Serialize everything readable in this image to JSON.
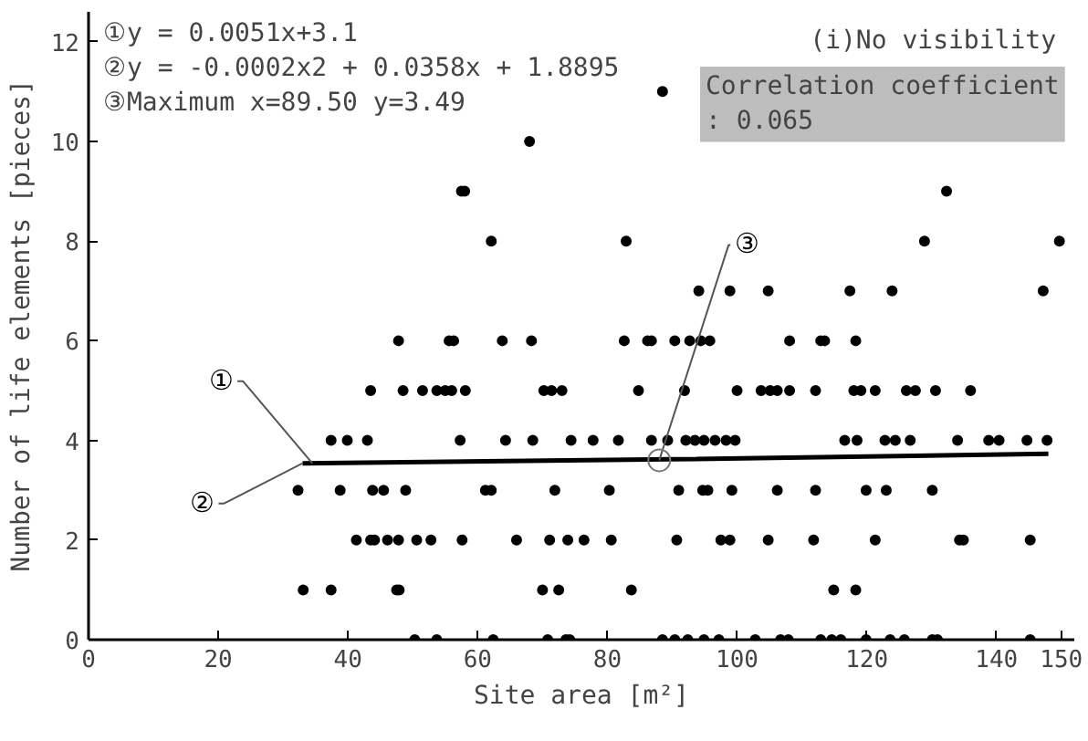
{
  "chart_data": {
    "type": "scatter",
    "title": "(i)No visibility",
    "xlabel": "Site area [m²]",
    "ylabel": "Number of life elements [pieces]",
    "xlim": [
      0,
      152
    ],
    "ylim": [
      0,
      12.6
    ],
    "xticks": [
      0,
      20,
      40,
      60,
      80,
      100,
      120,
      140,
      150
    ],
    "yticks": [
      0,
      2,
      4,
      6,
      8,
      10,
      12
    ],
    "grid": false,
    "series": [
      {
        "marker": "circle",
        "color": "#000000",
        "x": [
          88.5,
          68,
          57.5,
          58,
          132.3,
          62.1,
          82.9,
          128.9,
          149.7,
          94.1,
          98.9,
          104.8,
          117.4,
          123.9,
          147.2,
          47.8,
          55.6,
          56.3,
          63.8,
          68.3,
          82.6,
          86.2,
          86.8,
          90.4,
          92.7,
          94.4,
          95.8,
          108.1,
          112.9,
          113.5,
          118.3,
          43.5,
          48.5,
          51.5,
          53.7,
          55,
          56,
          58.1,
          70.2,
          71.4,
          73,
          84.8,
          91.9,
          100,
          103.7,
          105.1,
          106.2,
          108.1,
          112.1,
          118,
          119.1,
          121.3,
          126.1,
          127.5,
          130.6,
          136,
          37.4,
          39.9,
          43,
          57.3,
          64.3,
          68.5,
          74.4,
          77.8,
          81.7,
          86.8,
          89.3,
          92.1,
          93.5,
          94.9,
          96.6,
          98.3,
          99.7,
          116.6,
          118.5,
          122.8,
          124.4,
          126.7,
          134,
          138.8,
          140.4,
          144.7,
          147.8,
          32.3,
          38.8,
          43.8,
          45.5,
          48.9,
          61.2,
          62.1,
          71.9,
          80.3,
          91,
          94.7,
          95.5,
          99.2,
          106.2,
          112.1,
          119.9,
          123,
          130.1,
          41.3,
          43.5,
          44.1,
          46.1,
          47.8,
          50.6,
          52.8,
          57.6,
          66,
          71.1,
          73.9,
          76.4,
          80.6,
          90.7,
          97.5,
          98.9,
          104.8,
          111.8,
          121.3,
          134.3,
          134.9,
          145.2,
          33.1,
          37.4,
          47.5,
          47.9,
          70,
          72.5,
          83.7,
          114.9,
          118.3,
          50.3,
          53.7,
          62.4,
          70.8,
          73.6,
          74.2,
          88.5,
          90.4,
          92.4,
          94.9,
          97.2,
          102.8,
          106.7,
          107.9,
          112.9,
          114.6,
          116,
          119.9,
          123.6,
          125.8,
          130.1,
          130.9,
          145.2
        ],
        "values": [
          11,
          10,
          9,
          9,
          9,
          8,
          8,
          8,
          8,
          7,
          7,
          7,
          7,
          7,
          7,
          6,
          6,
          6,
          6,
          6,
          6,
          6,
          6,
          6,
          6,
          6,
          6,
          6,
          6,
          6,
          6,
          5,
          5,
          5,
          5,
          5,
          5,
          5,
          5,
          5,
          5,
          5,
          5,
          5,
          5,
          5,
          5,
          5,
          5,
          5,
          5,
          5,
          5,
          5,
          5,
          5,
          4,
          4,
          4,
          4,
          4,
          4,
          4,
          4,
          4,
          4,
          4,
          4,
          4,
          4,
          4,
          4,
          4,
          4,
          4,
          4,
          4,
          4,
          4,
          4,
          4,
          4,
          4,
          3,
          3,
          3,
          3,
          3,
          3,
          3,
          3,
          3,
          3,
          3,
          3,
          3,
          3,
          3,
          3,
          3,
          3,
          2,
          2,
          2,
          2,
          2,
          2,
          2,
          2,
          2,
          2,
          2,
          2,
          2,
          2,
          2,
          2,
          2,
          2,
          2,
          2,
          2,
          2,
          1,
          1,
          1,
          1,
          1,
          1,
          1,
          1,
          1,
          0,
          0,
          0,
          0,
          0,
          0,
          0,
          0,
          0,
          0,
          0,
          0,
          0,
          0,
          0,
          0,
          0,
          0,
          0,
          0,
          0,
          0,
          0
        ]
      },
      {
        "type": "line",
        "marker": "none",
        "color": "#000000",
        "x": [
          33,
          89.5,
          148
        ],
        "values": [
          3.54,
          3.62,
          3.73
        ]
      }
    ],
    "annotations": [
      "①y = 0.0051x+3.1",
      "②y = -0.0002x2 + 0.0358x + 1.8895",
      "③Maximum x=89.50 y=3.49",
      "Correlation coefficient\n: 0.065",
      {
        "text": "①",
        "x": 34.5,
        "y": 3.54
      },
      {
        "text": "②",
        "x": 33,
        "y": 3.54
      },
      {
        "text": "③",
        "x": 88,
        "y": 3.6
      }
    ]
  }
}
